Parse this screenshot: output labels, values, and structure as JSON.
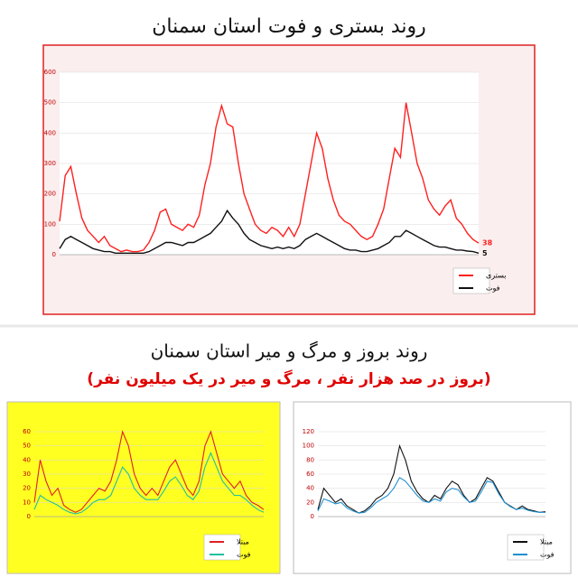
{
  "section_title": "روند بروز و مرگ و میر استان سمنان",
  "section_subtitle": "(بروز در صد هزار نفر ، مرگ و میر در یک میلیون نفر)",
  "chart_data": [
    {
      "type": "line",
      "title": "روند بستری و فوت استان سمنان",
      "background": "#fbeeee",
      "frame": "#e02020",
      "ylim": [
        0,
        600
      ],
      "yticks": [
        0,
        100,
        200,
        300,
        400,
        500,
        600
      ],
      "end_labels": true,
      "series": [
        {
          "name": "بستری",
          "color": "#ff2020",
          "values": [
            110,
            260,
            290,
            200,
            120,
            80,
            60,
            40,
            60,
            30,
            20,
            10,
            15,
            10,
            10,
            15,
            40,
            80,
            140,
            150,
            100,
            90,
            80,
            100,
            90,
            130,
            230,
            300,
            420,
            490,
            430,
            420,
            300,
            200,
            150,
            100,
            80,
            70,
            90,
            80,
            60,
            90,
            60,
            100,
            200,
            300,
            400,
            350,
            250,
            180,
            130,
            110,
            100,
            80,
            60,
            50,
            60,
            100,
            150,
            250,
            350,
            320,
            500,
            400,
            300,
            250,
            180,
            150,
            130,
            160,
            180,
            120,
            100,
            70,
            50,
            38
          ]
        },
        {
          "name": "فوت",
          "color": "#111111",
          "values": [
            20,
            50,
            60,
            50,
            40,
            30,
            20,
            15,
            10,
            10,
            5,
            5,
            5,
            5,
            5,
            5,
            10,
            20,
            30,
            40,
            40,
            35,
            30,
            40,
            40,
            50,
            60,
            70,
            90,
            110,
            145,
            120,
            100,
            70,
            50,
            40,
            30,
            25,
            20,
            25,
            20,
            25,
            20,
            30,
            50,
            60,
            70,
            60,
            50,
            40,
            30,
            20,
            15,
            15,
            10,
            10,
            15,
            20,
            30,
            40,
            60,
            60,
            80,
            70,
            60,
            50,
            40,
            30,
            25,
            25,
            20,
            15,
            15,
            12,
            10,
            5
          ]
        }
      ]
    },
    {
      "type": "line",
      "background": "#ffff22",
      "frame": "#bbbbbb",
      "ylim": [
        0,
        60
      ],
      "yticks": [
        0,
        10,
        20,
        30,
        40,
        50,
        60
      ],
      "series": [
        {
          "name": "مبتلا",
          "color": "#e02020",
          "values": [
            10,
            40,
            25,
            15,
            20,
            8,
            5,
            3,
            5,
            10,
            15,
            20,
            18,
            25,
            40,
            60,
            50,
            30,
            20,
            15,
            20,
            15,
            25,
            35,
            40,
            30,
            20,
            15,
            25,
            50,
            60,
            45,
            30,
            25,
            20,
            25,
            15,
            10,
            8,
            5
          ]
        },
        {
          "name": "فوت",
          "color": "#20c0a0",
          "values": [
            5,
            15,
            12,
            10,
            8,
            5,
            3,
            2,
            3,
            6,
            10,
            12,
            12,
            15,
            25,
            35,
            30,
            20,
            15,
            12,
            12,
            12,
            18,
            25,
            28,
            22,
            15,
            12,
            18,
            35,
            45,
            35,
            25,
            20,
            15,
            15,
            12,
            8,
            5,
            3
          ]
        }
      ]
    },
    {
      "type": "line",
      "background": "#ffffff",
      "frame": "#bbbbbb",
      "ylim": [
        0,
        120
      ],
      "yticks": [
        0,
        20,
        40,
        60,
        80,
        100,
        120
      ],
      "series": [
        {
          "name": "مبتلا",
          "color": "#111111",
          "values": [
            10,
            40,
            30,
            20,
            25,
            15,
            10,
            5,
            8,
            15,
            25,
            30,
            40,
            60,
            100,
            80,
            50,
            35,
            25,
            20,
            30,
            25,
            40,
            50,
            45,
            30,
            20,
            25,
            40,
            55,
            50,
            35,
            20,
            15,
            10,
            15,
            10,
            8,
            6,
            7
          ]
        },
        {
          "name": "فوت",
          "color": "#2090d0",
          "values": [
            8,
            25,
            22,
            18,
            20,
            12,
            8,
            5,
            6,
            12,
            20,
            25,
            30,
            40,
            55,
            50,
            40,
            30,
            22,
            20,
            25,
            22,
            35,
            40,
            38,
            28,
            20,
            22,
            35,
            50,
            48,
            32,
            20,
            14,
            10,
            12,
            9,
            7,
            6,
            6
          ]
        }
      ]
    }
  ]
}
